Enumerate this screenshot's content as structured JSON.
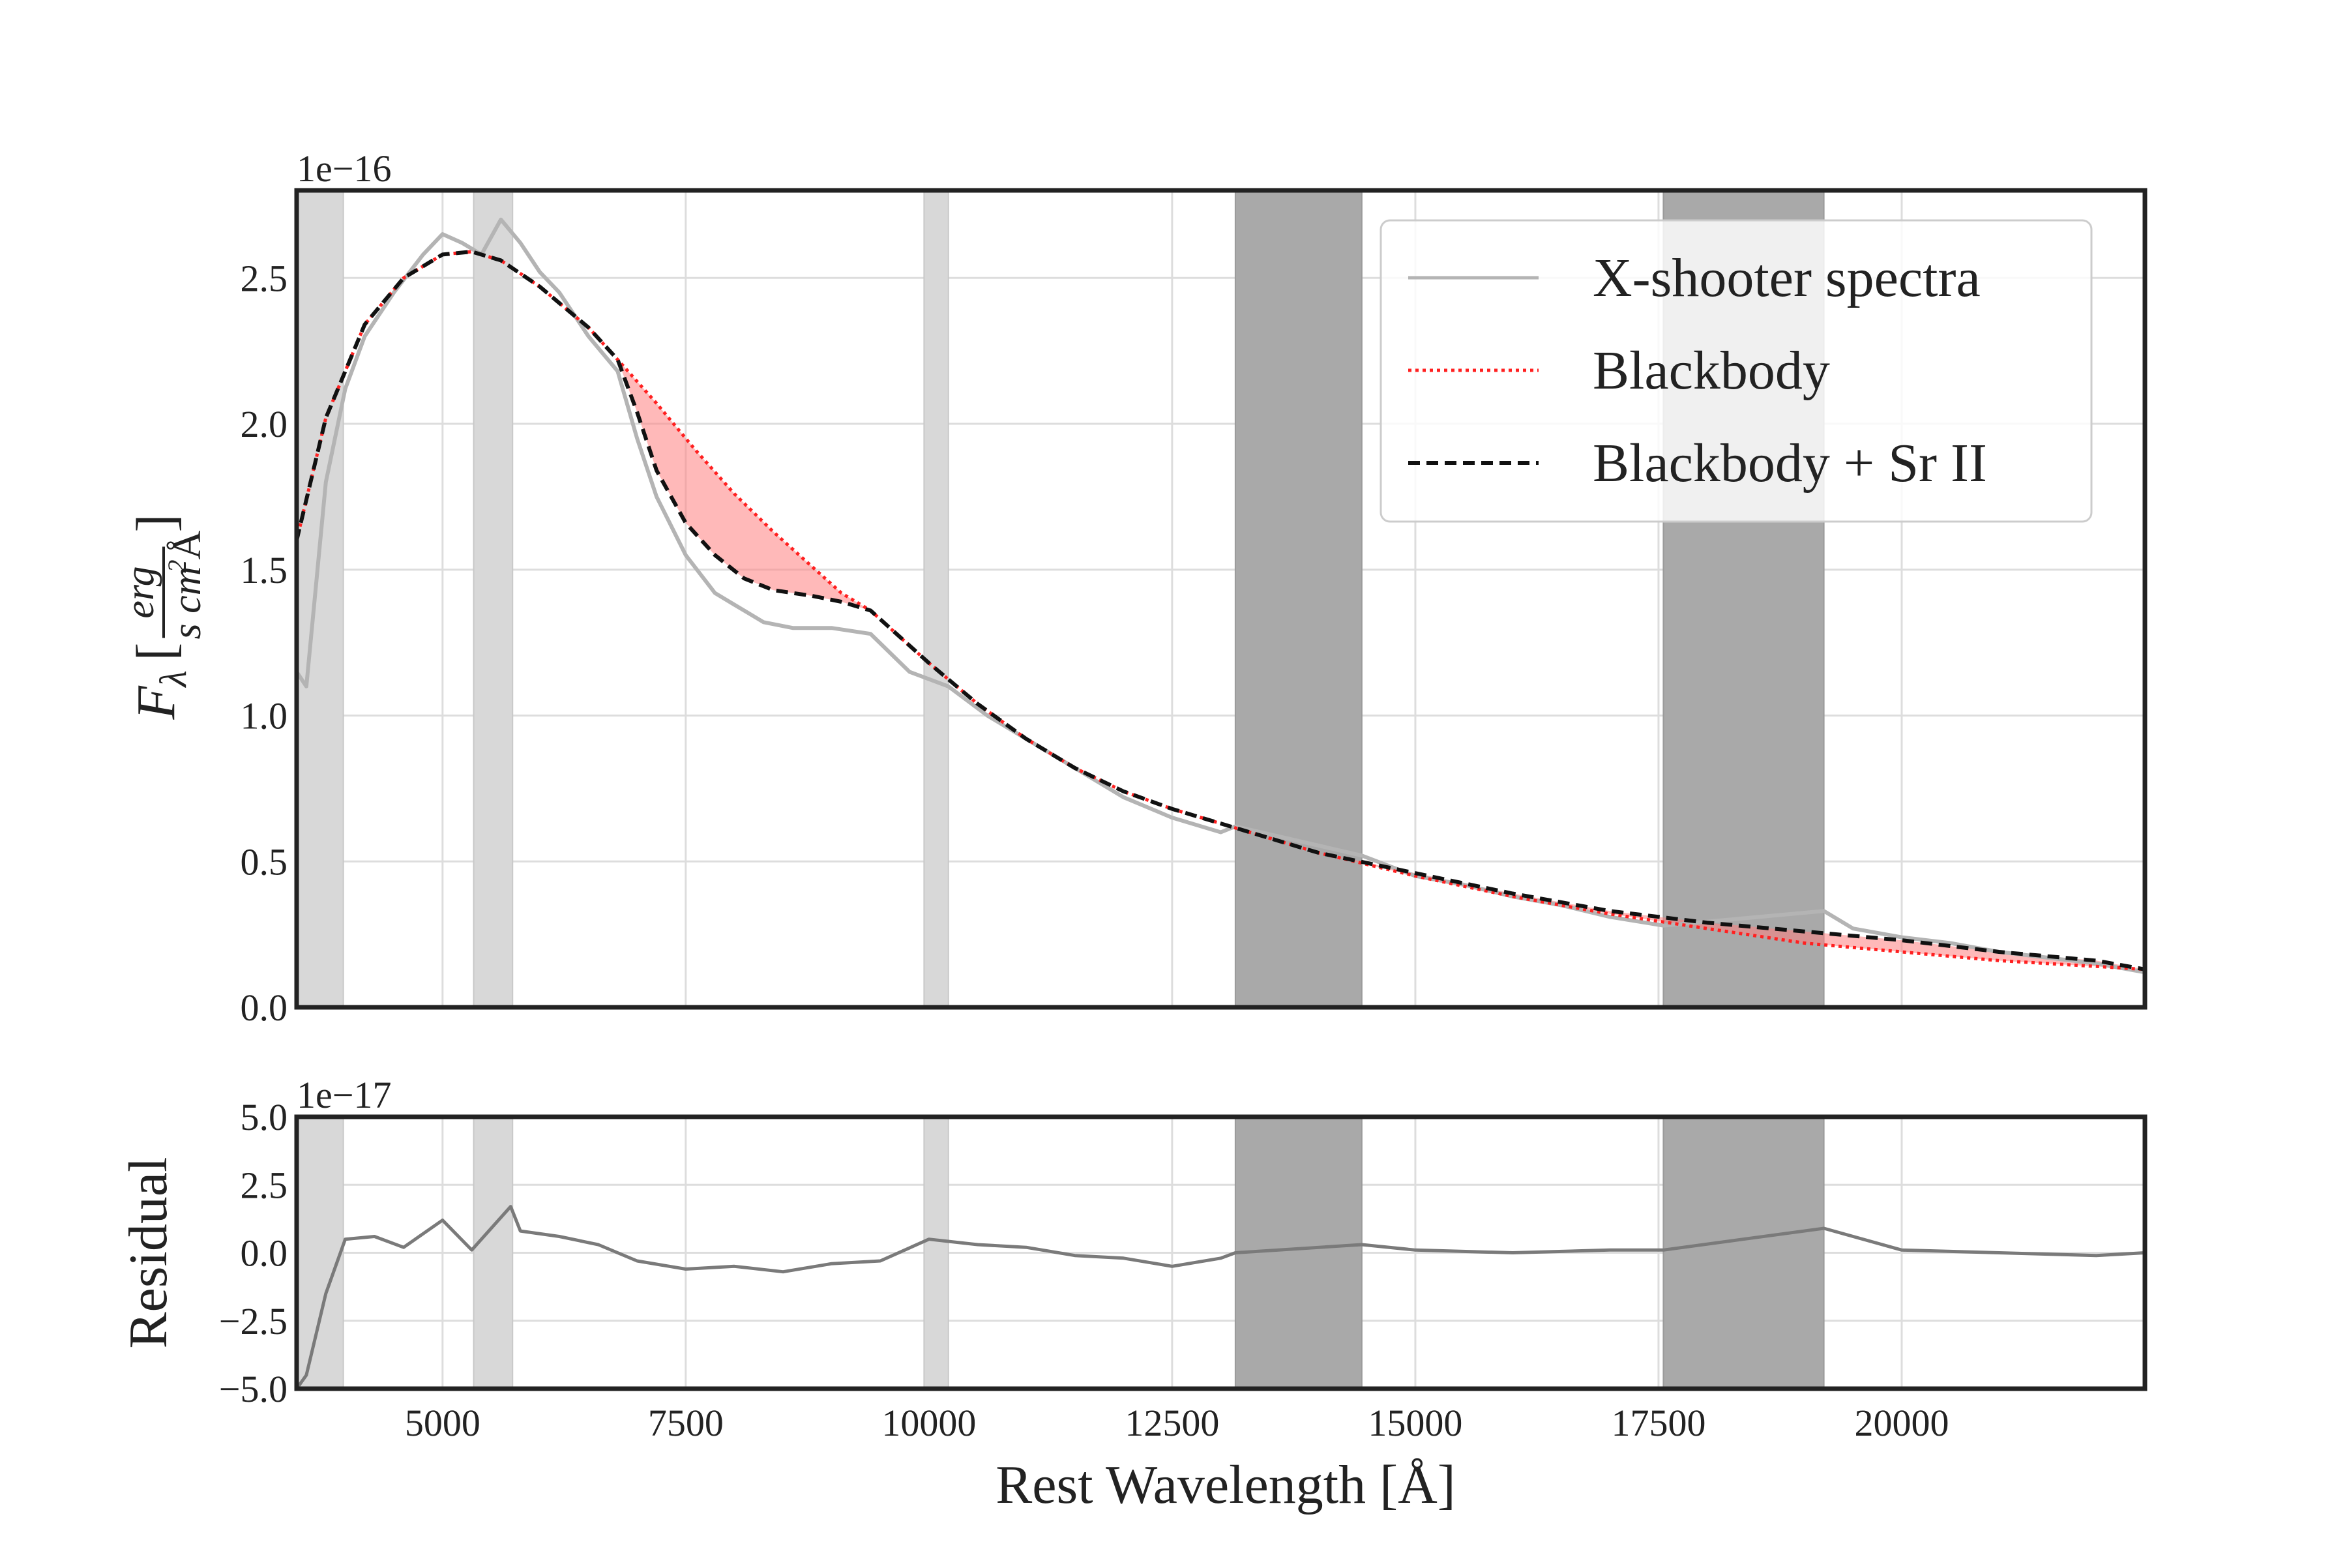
{
  "chart_data": {
    "type": "line",
    "xlabel": "Rest Wavelength [Å]",
    "xlim": [
      3500,
      22500
    ],
    "xticks": [
      5000,
      7500,
      10000,
      12500,
      15000,
      17500,
      20000
    ],
    "xtick_labels": [
      "5000",
      "7500",
      "10000",
      "12500",
      "15000",
      "17500",
      "20000"
    ],
    "grid": true,
    "masked_regions": [
      {
        "x0": 3500,
        "x1": 3980,
        "shade": "light"
      },
      {
        "x0": 5320,
        "x1": 5720,
        "shade": "light"
      },
      {
        "x0": 9950,
        "x1": 10200,
        "shade": "light"
      },
      {
        "x0": 13150,
        "x1": 14450,
        "shade": "dark"
      },
      {
        "x0": 17550,
        "x1": 19200,
        "shade": "dark"
      }
    ],
    "panels": [
      {
        "id": "flux",
        "ylabel_parts": {
          "main": "F",
          "sub": "λ",
          "num": "erg",
          "den": "s cm",
          "den_sup": "2",
          "den_unit": "Å"
        },
        "ylim": [
          0.0,
          2.8
        ],
        "yticks": [
          0.0,
          0.5,
          1.0,
          1.5,
          2.0,
          2.5
        ],
        "ytick_labels": [
          "0.0",
          "0.5",
          "1.0",
          "1.5",
          "2.0",
          "2.5"
        ],
        "offset_text": "1e−16",
        "legend": {
          "placement": "upper right",
          "entries": [
            {
              "label": "X-shooter spectra",
              "style": "solid",
              "color": "#b4b4b4"
            },
            {
              "label": "Blackbody",
              "style": "dotted",
              "color": "#ff2020"
            },
            {
              "label": "Blackbody + Sr II",
              "style": "dashed",
              "color": "#111111"
            }
          ]
        },
        "series": [
          {
            "name": "X-shooter spectra",
            "color": "#b4b4b4",
            "x": [
              3500,
              3600,
              3800,
              4000,
              4200,
              4500,
              4800,
              5000,
              5200,
              5400,
              5600,
              5800,
              6000,
              6200,
              6500,
              6800,
              7000,
              7200,
              7500,
              7800,
              8000,
              8300,
              8600,
              9000,
              9400,
              9800,
              10200,
              10600,
              11000,
              11500,
              12000,
              12500,
              13000,
              13150,
              14450,
              15000,
              15500,
              16000,
              16500,
              17000,
              17550,
              19200,
              19500,
              20000,
              20500,
              21000,
              21500,
              22000,
              22500
            ],
            "y": [
              1.15,
              1.1,
              1.8,
              2.12,
              2.3,
              2.45,
              2.58,
              2.65,
              2.62,
              2.58,
              2.7,
              2.62,
              2.52,
              2.45,
              2.3,
              2.18,
              1.95,
              1.75,
              1.55,
              1.42,
              1.38,
              1.32,
              1.3,
              1.3,
              1.28,
              1.15,
              1.1,
              1.0,
              0.92,
              0.82,
              0.72,
              0.65,
              0.6,
              0.62,
              0.52,
              0.45,
              0.42,
              0.38,
              0.35,
              0.31,
              0.28,
              0.33,
              0.27,
              0.24,
              0.22,
              0.19,
              0.17,
              0.15,
              0.12
            ]
          },
          {
            "name": "Blackbody",
            "color": "#ff2020",
            "x": [
              3500,
              3800,
              4200,
              4600,
              5000,
              5300,
              5600,
              6000,
              6500,
              6800,
              7200,
              7600,
              8000,
              8400,
              8800,
              9100,
              9400,
              10000,
              10500,
              11000,
              11500,
              12000,
              12500,
              13000,
              13500,
              14000,
              15000,
              16000,
              17000,
              18000,
              19000,
              20000,
              21000,
              22000,
              22500
            ],
            "y": [
              1.6,
              2.02,
              2.34,
              2.5,
              2.58,
              2.59,
              2.56,
              2.47,
              2.33,
              2.22,
              2.07,
              1.91,
              1.76,
              1.63,
              1.51,
              1.42,
              1.36,
              1.18,
              1.04,
              0.92,
              0.82,
              0.74,
              0.68,
              0.63,
              0.58,
              0.53,
              0.45,
              0.38,
              0.32,
              0.27,
              0.22,
              0.19,
              0.16,
              0.14,
              0.13
            ]
          },
          {
            "name": "Blackbody + Sr II",
            "color": "#111111",
            "x": [
              3500,
              3800,
              4200,
              4600,
              5000,
              5300,
              5600,
              6000,
              6500,
              6800,
              7000,
              7200,
              7500,
              7800,
              8100,
              8400,
              8800,
              9100,
              9400,
              10000,
              10500,
              11000,
              11500,
              12000,
              12500,
              13000,
              13500,
              14000,
              15000,
              16000,
              17000,
              18000,
              19000,
              20000,
              21000,
              22000,
              22500
            ],
            "y": [
              1.6,
              2.02,
              2.34,
              2.5,
              2.58,
              2.59,
              2.56,
              2.47,
              2.33,
              2.22,
              2.04,
              1.84,
              1.66,
              1.55,
              1.47,
              1.43,
              1.41,
              1.39,
              1.36,
              1.18,
              1.04,
              0.92,
              0.82,
              0.74,
              0.68,
              0.63,
              0.58,
              0.53,
              0.46,
              0.39,
              0.33,
              0.29,
              0.26,
              0.23,
              0.19,
              0.16,
              0.13
            ]
          }
        ]
      },
      {
        "id": "residual",
        "ylabel": "Residual",
        "ylim": [
          -5.0,
          5.0
        ],
        "yticks": [
          -5.0,
          -2.5,
          0.0,
          2.5,
          5.0
        ],
        "ytick_labels": [
          "−5.0",
          "−2.5",
          "0.0",
          "2.5",
          "5.0"
        ],
        "offset_text": "1e−17",
        "series": [
          {
            "name": "",
            "color": "#7a7a7a",
            "x": [
              3500,
              3600,
              3800,
              4000,
              4300,
              4600,
              5000,
              5300,
              5700,
              5800,
              6200,
              6600,
              7000,
              7500,
              8000,
              8500,
              9000,
              9500,
              10000,
              10500,
              11000,
              11500,
              12000,
              12500,
              13000,
              13150,
              14450,
              15000,
              16000,
              17000,
              17550,
              19200,
              20000,
              21000,
              22000,
              22500
            ],
            "y": [
              -5.0,
              -4.5,
              -1.5,
              0.5,
              0.6,
              0.2,
              1.2,
              0.1,
              1.7,
              0.8,
              0.6,
              0.3,
              -0.3,
              -0.6,
              -0.5,
              -0.7,
              -0.4,
              -0.3,
              0.5,
              0.3,
              0.2,
              -0.1,
              -0.2,
              -0.5,
              -0.2,
              0.0,
              0.3,
              0.1,
              0.0,
              0.1,
              0.1,
              0.9,
              0.1,
              0.0,
              -0.1,
              0.0
            ]
          }
        ]
      }
    ]
  }
}
